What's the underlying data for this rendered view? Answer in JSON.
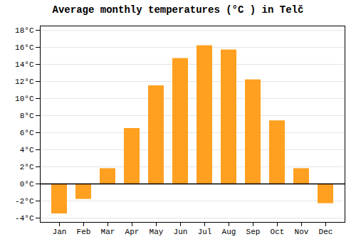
{
  "chart_data": {
    "type": "bar",
    "title": "Average monthly temperatures (°C ) in Telč",
    "categories": [
      "Jan",
      "Feb",
      "Mar",
      "Apr",
      "May",
      "Jun",
      "Jul",
      "Aug",
      "Sep",
      "Oct",
      "Nov",
      "Dec"
    ],
    "values": [
      -3.5,
      -1.8,
      1.8,
      6.5,
      11.5,
      14.7,
      16.2,
      15.7,
      12.2,
      7.4,
      1.8,
      -2.3
    ],
    "color": "#FFA020",
    "ylim": [
      -4.5,
      18.5
    ],
    "yticks": [
      {
        "value": -4,
        "label": "-4°C"
      },
      {
        "value": -2,
        "label": "-2°C"
      },
      {
        "value": 0,
        "label": "0°C"
      },
      {
        "value": 2,
        "label": "2°C"
      },
      {
        "value": 4,
        "label": "4°C"
      },
      {
        "value": 6,
        "label": "6°C"
      },
      {
        "value": 8,
        "label": "8°C"
      },
      {
        "value": 10,
        "label": "10°C"
      },
      {
        "value": 12,
        "label": "12°C"
      },
      {
        "value": 14,
        "label": "14°C"
      },
      {
        "value": 16,
        "label": "16°C"
      },
      {
        "value": 18,
        "label": "18°C"
      }
    ],
    "grid": true
  }
}
